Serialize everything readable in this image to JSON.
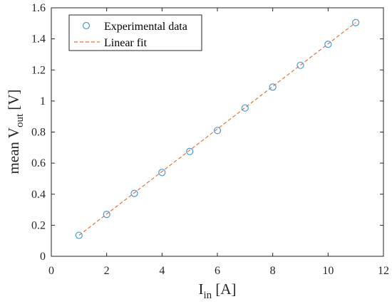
{
  "chart_data": {
    "type": "scatter",
    "xlabel": {
      "main": "I",
      "sub": "in",
      "unit": " [A]"
    },
    "ylabel": {
      "main": "mean V",
      "sub": "out",
      "unit": " [V]"
    },
    "xlim": [
      0,
      12
    ],
    "ylim": [
      0,
      1.6
    ],
    "x_ticks": [
      0,
      2,
      4,
      6,
      8,
      10,
      12
    ],
    "y_ticks": [
      0,
      0.2,
      0.4,
      0.6,
      0.8,
      1,
      1.2,
      1.4,
      1.6
    ],
    "x_tick_labels": [
      "0",
      "2",
      "4",
      "6",
      "8",
      "10",
      "12"
    ],
    "y_tick_labels": [
      "0",
      "0.2",
      "0.4",
      "0.6",
      "0.8",
      "1",
      "1.2",
      "1.4",
      "1.6"
    ],
    "grid": false,
    "legend_position": "top-left",
    "series": [
      {
        "name": "Experimental data",
        "kind": "markers",
        "marker": "circle-open",
        "color": "#4a9bd6",
        "x": [
          1,
          2,
          3,
          4,
          5,
          6,
          7,
          8,
          9,
          10,
          11
        ],
        "y": [
          0.135,
          0.27,
          0.405,
          0.54,
          0.675,
          0.81,
          0.955,
          1.09,
          1.23,
          1.365,
          1.505
        ]
      },
      {
        "name": "Linear fit",
        "kind": "line",
        "line_style": "dashed",
        "color": "#e3743d",
        "x": [
          1,
          11
        ],
        "y": [
          0.135,
          1.505
        ]
      }
    ]
  }
}
